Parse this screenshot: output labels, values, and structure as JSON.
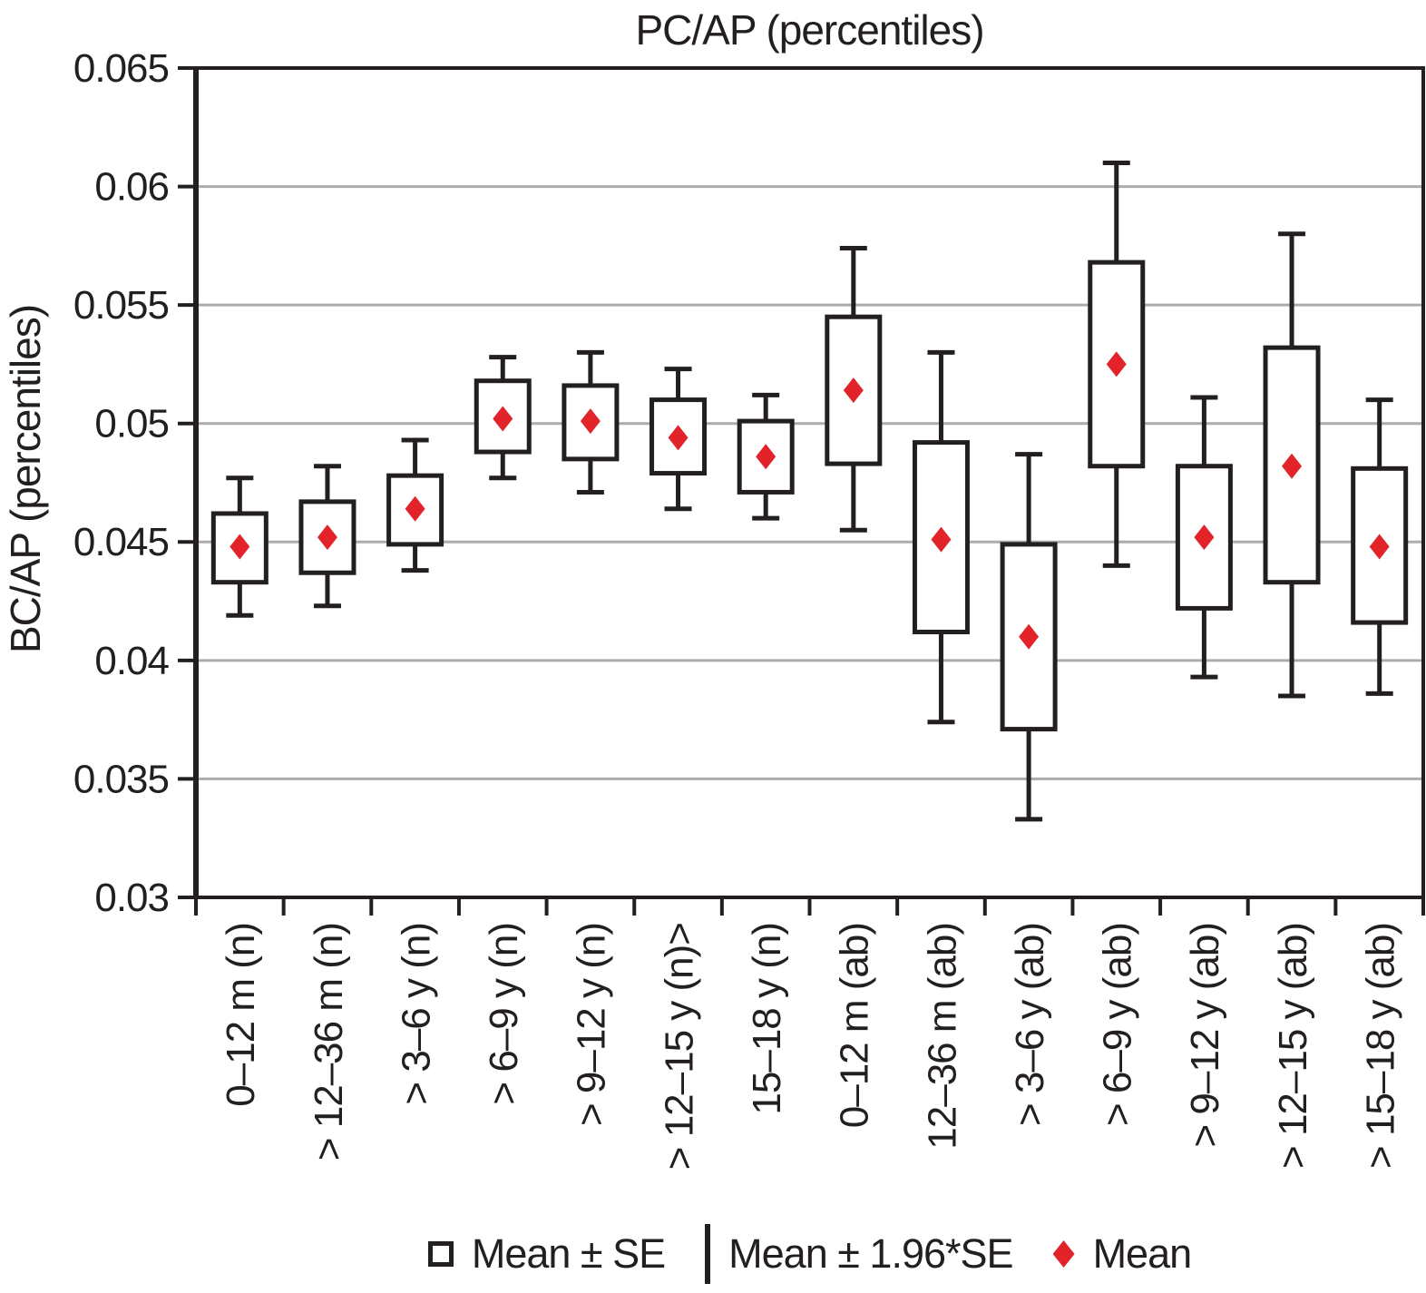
{
  "title": "PC/AP (percentiles)",
  "y_axis_label": "BC/AP (percentiles)",
  "legend": {
    "items": [
      {
        "symbol": "square",
        "label": "Mean ± SE"
      },
      {
        "symbol": "bar",
        "label": "Mean ± 1.96*SE"
      },
      {
        "symbol": "diamond",
        "label": "Mean"
      }
    ]
  },
  "colors": {
    "frame": "#231f20",
    "box_border": "#231f20",
    "whisker": "#231f20",
    "gridline": "#aaacae",
    "mean_diamond": "#e2232a",
    "text": "#231f20",
    "background": "#ffffff"
  },
  "chart_data": {
    "type": "box",
    "title": "PC/AP (percentiles)",
    "xlabel": "",
    "ylabel": "BC/AP (percentiles)",
    "ylim": [
      0.03,
      0.065
    ],
    "ytick_step": 0.005,
    "yticks": [
      "0.065",
      "0.06",
      "0.055",
      "0.05",
      "0.045",
      "0.04",
      "0.035",
      "0.03"
    ],
    "grid": "horizontal",
    "legend_position": "bottom",
    "box_meaning": "Mean ± SE",
    "whisker_meaning": "Mean ± 1.96*SE",
    "center_meaning": "Mean",
    "categories": [
      "0–12 m (n)",
      "> 12–36 m (n)",
      "> 3–6 y (n)",
      "> 6–9 y (n)",
      "> 9–12 y (n)",
      "> 12–15 y (n)>",
      "15–18 y (n)",
      "0–12 m (ab)",
      "12–36 m (ab)",
      "> 3–6 y (ab)",
      "> 6–9 y (ab)",
      "> 9–12 y (ab)",
      "> 12–15 y (ab)",
      "> 15–18 y (ab)"
    ],
    "points": [
      {
        "category": "0–12 m (n)",
        "mean": 0.0448,
        "box_low": 0.0433,
        "box_high": 0.0462,
        "whisker_low": 0.0419,
        "whisker_high": 0.0477
      },
      {
        "category": "> 12–36 m (n)",
        "mean": 0.0452,
        "box_low": 0.0437,
        "box_high": 0.0467,
        "whisker_low": 0.0423,
        "whisker_high": 0.0482
      },
      {
        "category": "> 3–6 y (n)",
        "mean": 0.0464,
        "box_low": 0.0449,
        "box_high": 0.0478,
        "whisker_low": 0.0438,
        "whisker_high": 0.0493
      },
      {
        "category": "> 6–9 y (n)",
        "mean": 0.0502,
        "box_low": 0.0488,
        "box_high": 0.0518,
        "whisker_low": 0.0477,
        "whisker_high": 0.0528
      },
      {
        "category": "> 9–12 y (n)",
        "mean": 0.0501,
        "box_low": 0.0485,
        "box_high": 0.0516,
        "whisker_low": 0.0471,
        "whisker_high": 0.053
      },
      {
        "category": "> 12–15 y (n)>",
        "mean": 0.0494,
        "box_low": 0.0479,
        "box_high": 0.051,
        "whisker_low": 0.0464,
        "whisker_high": 0.0523
      },
      {
        "category": "15–18 y (n)",
        "mean": 0.0486,
        "box_low": 0.0471,
        "box_high": 0.0501,
        "whisker_low": 0.046,
        "whisker_high": 0.0512
      },
      {
        "category": "0–12 m (ab)",
        "mean": 0.0514,
        "box_low": 0.0483,
        "box_high": 0.0545,
        "whisker_low": 0.0455,
        "whisker_high": 0.0574
      },
      {
        "category": "12–36 m (ab)",
        "mean": 0.0451,
        "box_low": 0.0412,
        "box_high": 0.0492,
        "whisker_low": 0.0374,
        "whisker_high": 0.053
      },
      {
        "category": "> 3–6 y (ab)",
        "mean": 0.041,
        "box_low": 0.0371,
        "box_high": 0.0449,
        "whisker_low": 0.0333,
        "whisker_high": 0.0487
      },
      {
        "category": "> 6–9 y (ab)",
        "mean": 0.0525,
        "box_low": 0.0482,
        "box_high": 0.0568,
        "whisker_low": 0.044,
        "whisker_high": 0.061
      },
      {
        "category": "> 9–12 y (ab)",
        "mean": 0.0452,
        "box_low": 0.0422,
        "box_high": 0.0482,
        "whisker_low": 0.0393,
        "whisker_high": 0.0511
      },
      {
        "category": "> 12–15 y (ab)",
        "mean": 0.0482,
        "box_low": 0.0433,
        "box_high": 0.0532,
        "whisker_low": 0.0385,
        "whisker_high": 0.058
      },
      {
        "category": "> 15–18 y (ab)",
        "mean": 0.0448,
        "box_low": 0.0416,
        "box_high": 0.0481,
        "whisker_low": 0.0386,
        "whisker_high": 0.051
      }
    ]
  }
}
